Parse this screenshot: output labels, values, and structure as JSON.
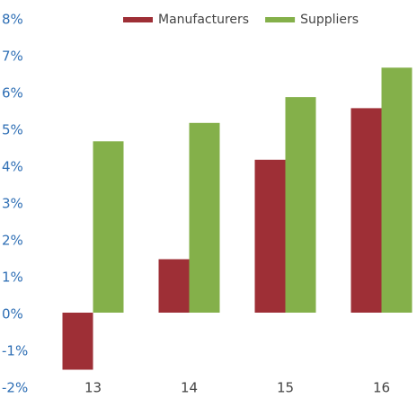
{
  "chart_data": {
    "type": "bar",
    "categories": [
      "13",
      "14",
      "15",
      "16"
    ],
    "series": [
      {
        "name": "Manufacturers",
        "color": "#9e2f36",
        "values": [
          -1.5,
          1.5,
          4.2,
          5.6
        ]
      },
      {
        "name": "Suppliers",
        "color": "#84b04a",
        "values": [
          4.7,
          5.2,
          5.9,
          6.7
        ]
      }
    ],
    "ylim": [
      -2,
      8
    ],
    "yticks": [
      {
        "value": -2,
        "label": "-2%"
      },
      {
        "value": -1,
        "label": "-1%"
      },
      {
        "value": 0,
        "label": "0%"
      },
      {
        "value": 1,
        "label": "1%"
      },
      {
        "value": 2,
        "label": "2%"
      },
      {
        "value": 3,
        "label": "3%"
      },
      {
        "value": 4,
        "label": "4%"
      },
      {
        "value": 5,
        "label": "5%"
      },
      {
        "value": 6,
        "label": "6%"
      },
      {
        "value": 7,
        "label": "7%"
      },
      {
        "value": 8,
        "label": "8%"
      }
    ],
    "grid": false,
    "legend": "top"
  }
}
